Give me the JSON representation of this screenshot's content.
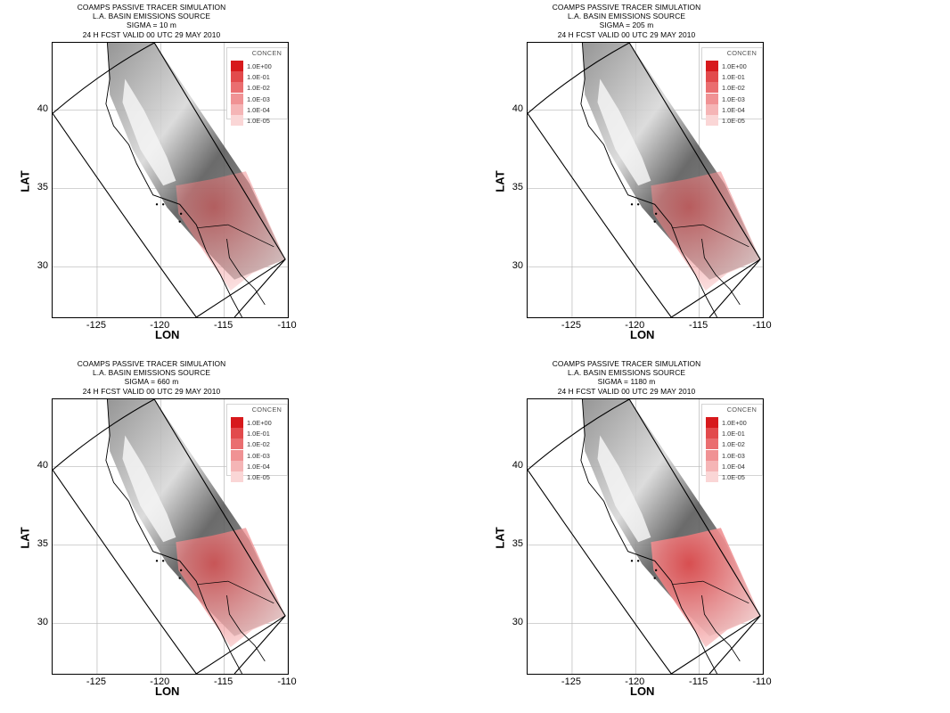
{
  "panels": [
    {
      "title_lines": [
        "COAMPS PASSIVE TRACER SIMULATION",
        "L.A. BASIN EMISSIONS SOURCE",
        "SIGMA = 10 m",
        "24 H FCST VALID 00 UTC 29 MAY 2010"
      ],
      "sigma_level": "10 m",
      "plume_intensity": 0.55
    },
    {
      "title_lines": [
        "COAMPS PASSIVE TRACER SIMULATION",
        "L.A. BASIN EMISSIONS SOURCE",
        "SIGMA = 205 m",
        "24 H FCST VALID 00 UTC 29 MAY 2010"
      ],
      "sigma_level": "205 m",
      "plume_intensity": 0.6
    },
    {
      "title_lines": [
        "COAMPS PASSIVE TRACER SIMULATION",
        "L.A. BASIN EMISSIONS SOURCE",
        "SIGMA = 660 m",
        "24 H FCST VALID 00 UTC 29 MAY 2010"
      ],
      "sigma_level": "660 m",
      "plume_intensity": 0.75
    },
    {
      "title_lines": [
        "COAMPS PASSIVE TRACER SIMULATION",
        "L.A. BASIN EMISSIONS SOURCE",
        "SIGMA = 1180 m",
        "24 H FCST VALID 00 UTC 29 MAY 2010"
      ],
      "sigma_level": "1180 m",
      "plume_intensity": 0.9
    }
  ],
  "axes": {
    "xlabel": "LON",
    "ylabel": "LAT",
    "x_ticks": [
      "-125",
      "-120",
      "-115",
      "-110"
    ],
    "y_ticks": [
      "40",
      "35",
      "30"
    ],
    "x_range": [
      -128.5,
      -110
    ],
    "y_range": [
      26.8,
      44.3
    ]
  },
  "legend": {
    "title": "CONCEN",
    "entries": [
      {
        "label": "1.0E+00",
        "color": "#d7191c"
      },
      {
        "label": "1.0E-01",
        "color": "#e24a4c"
      },
      {
        "label": "1.0E-02",
        "color": "#ea6e70"
      },
      {
        "label": "1.0E-03",
        "color": "#f09294"
      },
      {
        "label": "1.0E-04",
        "color": "#f5b5b6"
      },
      {
        "label": "1.0E-05",
        "color": "#fad6d6"
      }
    ]
  }
}
